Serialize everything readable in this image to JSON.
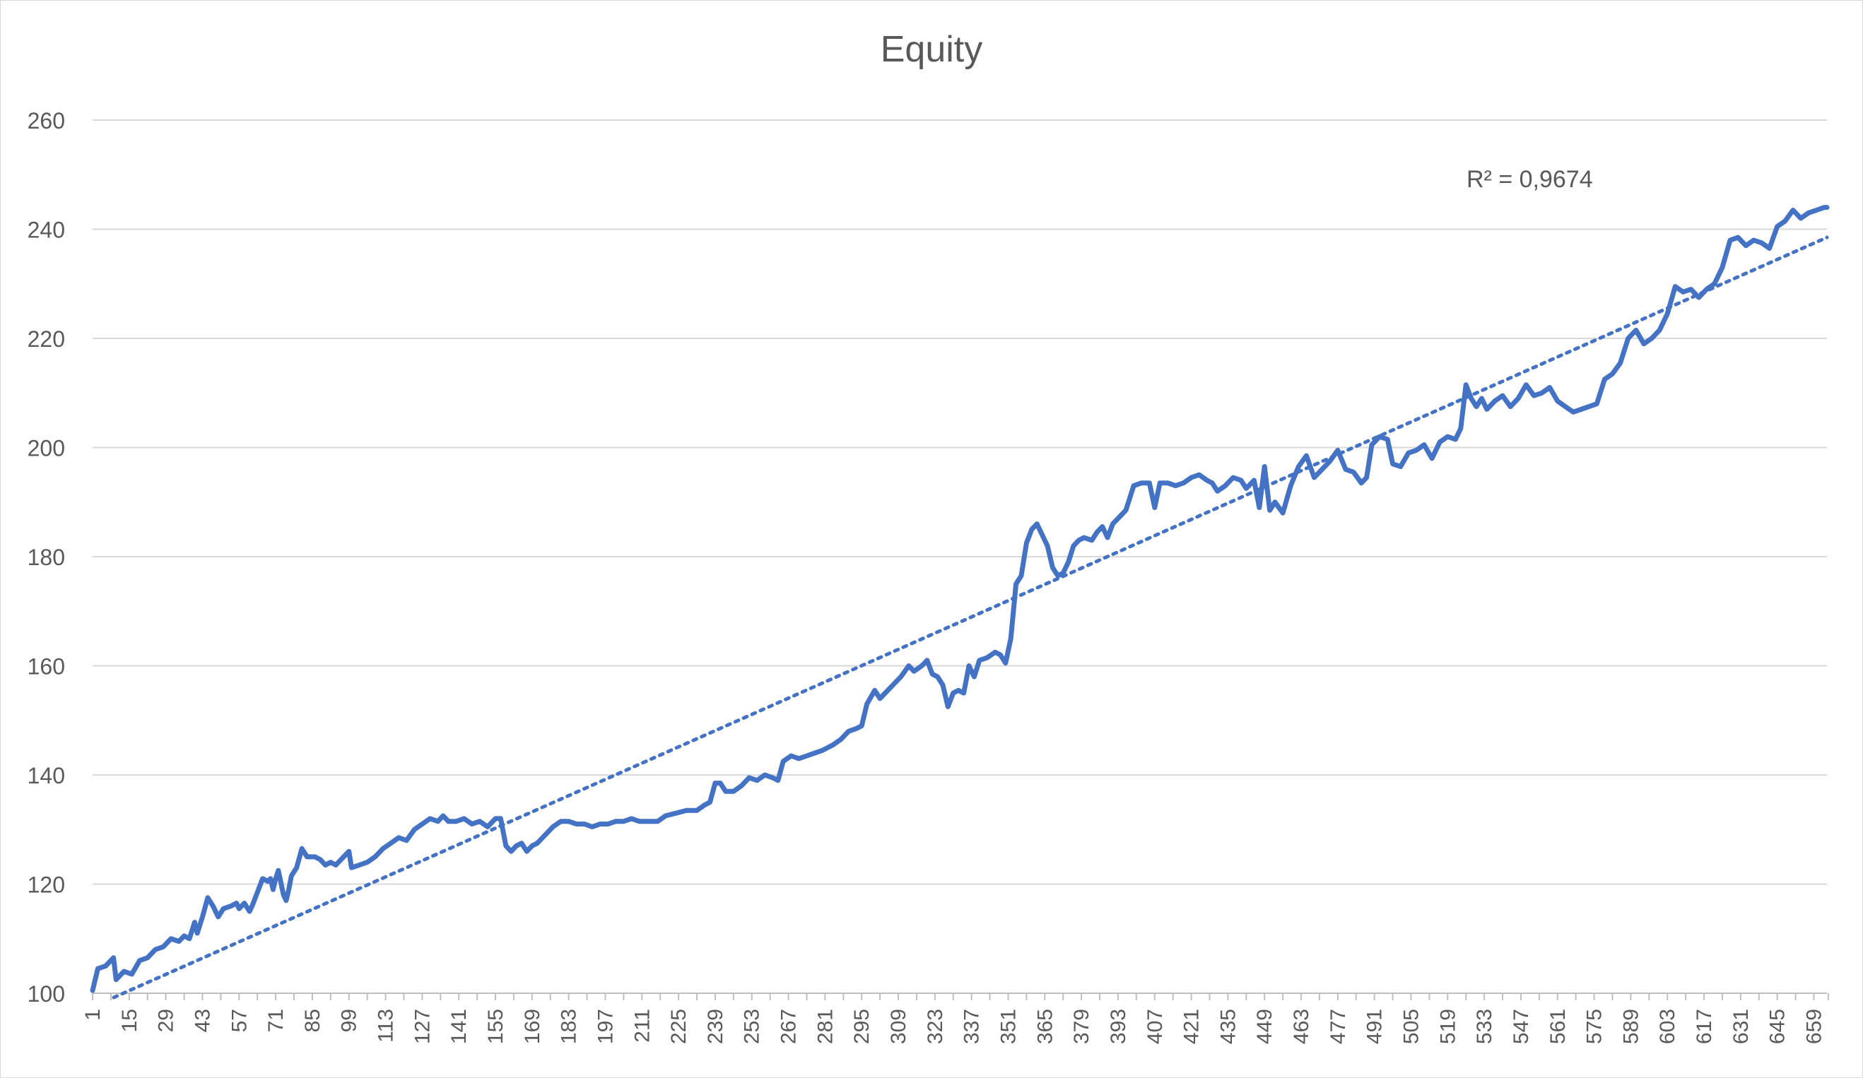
{
  "chart_data": {
    "type": "line",
    "title": "Equity",
    "xlabel": "",
    "ylabel": "",
    "ylim": [
      100,
      260
    ],
    "y_ticks": [
      100,
      120,
      140,
      160,
      180,
      200,
      220,
      240,
      260
    ],
    "x_range": [
      1,
      664
    ],
    "x_tick_labels": [
      1,
      15,
      29,
      43,
      57,
      71,
      85,
      99,
      113,
      127,
      141,
      155,
      169,
      183,
      197,
      211,
      225,
      239,
      253,
      267,
      281,
      295,
      309,
      323,
      337,
      351,
      365,
      379,
      393,
      407,
      421,
      435,
      449,
      463,
      477,
      491,
      505,
      519,
      533,
      547,
      561,
      575,
      589,
      603,
      617,
      631,
      645,
      659
    ],
    "grid": "horizontal",
    "legend": "none",
    "series": [
      {
        "color": "#4472c4",
        "points": [
          [
            1,
            100.5
          ],
          [
            3,
            104.5
          ],
          [
            6,
            105
          ],
          [
            9,
            106.5
          ],
          [
            10,
            102.5
          ],
          [
            13,
            104
          ],
          [
            16,
            103.5
          ],
          [
            19,
            106
          ],
          [
            22,
            106.5
          ],
          [
            25,
            108
          ],
          [
            28,
            108.5
          ],
          [
            31,
            110
          ],
          [
            34,
            109.5
          ],
          [
            36,
            110.5
          ],
          [
            38,
            110
          ],
          [
            40,
            113
          ],
          [
            41,
            111
          ],
          [
            43,
            114
          ],
          [
            45,
            117.5
          ],
          [
            47,
            116
          ],
          [
            49,
            114
          ],
          [
            51,
            115.5
          ],
          [
            54,
            116
          ],
          [
            56,
            116.5
          ],
          [
            57,
            115.5
          ],
          [
            59,
            116.5
          ],
          [
            61,
            115
          ],
          [
            62,
            116
          ],
          [
            64,
            118.5
          ],
          [
            66,
            121
          ],
          [
            68,
            120.5
          ],
          [
            69,
            121
          ],
          [
            70,
            119
          ],
          [
            71,
            121
          ],
          [
            72,
            122.5
          ],
          [
            74,
            118
          ],
          [
            75,
            117
          ],
          [
            76,
            119
          ],
          [
            77,
            121.5
          ],
          [
            79,
            123
          ],
          [
            81,
            126.5
          ],
          [
            83,
            125
          ],
          [
            86,
            125
          ],
          [
            88,
            124.5
          ],
          [
            90,
            123.5
          ],
          [
            92,
            124
          ],
          [
            94,
            123.5
          ],
          [
            96,
            124.5
          ],
          [
            99,
            126
          ],
          [
            100,
            123
          ],
          [
            103,
            123.5
          ],
          [
            106,
            124
          ],
          [
            109,
            125
          ],
          [
            112,
            126.5
          ],
          [
            115,
            127.5
          ],
          [
            118,
            128.5
          ],
          [
            121,
            128
          ],
          [
            124,
            130
          ],
          [
            127,
            131
          ],
          [
            130,
            132
          ],
          [
            133,
            131.5
          ],
          [
            135,
            132.5
          ],
          [
            137,
            131.5
          ],
          [
            140,
            131.5
          ],
          [
            143,
            132
          ],
          [
            146,
            131
          ],
          [
            149,
            131.5
          ],
          [
            152,
            130.5
          ],
          [
            155,
            132
          ],
          [
            157,
            132
          ],
          [
            159,
            127
          ],
          [
            161,
            126
          ],
          [
            163,
            127
          ],
          [
            165,
            127.5
          ],
          [
            167,
            126
          ],
          [
            169,
            127
          ],
          [
            171,
            127.5
          ],
          [
            174,
            129
          ],
          [
            177,
            130.5
          ],
          [
            180,
            131.5
          ],
          [
            183,
            131.5
          ],
          [
            186,
            131
          ],
          [
            189,
            131
          ],
          [
            192,
            130.5
          ],
          [
            195,
            131
          ],
          [
            198,
            131
          ],
          [
            201,
            131.5
          ],
          [
            204,
            131.5
          ],
          [
            207,
            132
          ],
          [
            210,
            131.5
          ],
          [
            214,
            131.5
          ],
          [
            217,
            131.5
          ],
          [
            220,
            132.5
          ],
          [
            224,
            133
          ],
          [
            228,
            133.5
          ],
          [
            232,
            133.5
          ],
          [
            235,
            134.5
          ],
          [
            237,
            135
          ],
          [
            239,
            138.5
          ],
          [
            241,
            138.5
          ],
          [
            243,
            137
          ],
          [
            246,
            137
          ],
          [
            249,
            138
          ],
          [
            252,
            139.5
          ],
          [
            255,
            139
          ],
          [
            258,
            140
          ],
          [
            261,
            139.5
          ],
          [
            263,
            139
          ],
          [
            265,
            142.5
          ],
          [
            268,
            143.5
          ],
          [
            271,
            143
          ],
          [
            274,
            143.5
          ],
          [
            277,
            144
          ],
          [
            280,
            144.5
          ],
          [
            284,
            145.5
          ],
          [
            287,
            146.5
          ],
          [
            290,
            148
          ],
          [
            293,
            148.5
          ],
          [
            295,
            149
          ],
          [
            297,
            153
          ],
          [
            300,
            155.5
          ],
          [
            302,
            154
          ],
          [
            304,
            155
          ],
          [
            307,
            156.5
          ],
          [
            310,
            158
          ],
          [
            313,
            160
          ],
          [
            315,
            159
          ],
          [
            318,
            160
          ],
          [
            320,
            161
          ],
          [
            322,
            158.5
          ],
          [
            324,
            158
          ],
          [
            326,
            156.5
          ],
          [
            328,
            152.5
          ],
          [
            330,
            155
          ],
          [
            332,
            155.5
          ],
          [
            334,
            155
          ],
          [
            336,
            160
          ],
          [
            338,
            158
          ],
          [
            340,
            161
          ],
          [
            343,
            161.5
          ],
          [
            346,
            162.5
          ],
          [
            348,
            162
          ],
          [
            350,
            160.5
          ],
          [
            352,
            165
          ],
          [
            354,
            175
          ],
          [
            356,
            176.5
          ],
          [
            358,
            182.5
          ],
          [
            360,
            185
          ],
          [
            362,
            186
          ],
          [
            364,
            184
          ],
          [
            366,
            182
          ],
          [
            368,
            178
          ],
          [
            370,
            176.5
          ],
          [
            372,
            177
          ],
          [
            374,
            179
          ],
          [
            376,
            182
          ],
          [
            378,
            183
          ],
          [
            380,
            183.5
          ],
          [
            383,
            183
          ],
          [
            385,
            184.5
          ],
          [
            387,
            185.5
          ],
          [
            389,
            183.5
          ],
          [
            391,
            186
          ],
          [
            393,
            187
          ],
          [
            396,
            188.5
          ],
          [
            399,
            193
          ],
          [
            402,
            193.5
          ],
          [
            405,
            193.5
          ],
          [
            407,
            189
          ],
          [
            409,
            193.5
          ],
          [
            412,
            193.5
          ],
          [
            415,
            193
          ],
          [
            418,
            193.5
          ],
          [
            421,
            194.5
          ],
          [
            424,
            195
          ],
          [
            427,
            194
          ],
          [
            429,
            193.5
          ],
          [
            431,
            192
          ],
          [
            434,
            193
          ],
          [
            437,
            194.5
          ],
          [
            440,
            194
          ],
          [
            442,
            192.5
          ],
          [
            445,
            194
          ],
          [
            447,
            189
          ],
          [
            449,
            196.5
          ],
          [
            451,
            188.5
          ],
          [
            453,
            190
          ],
          [
            456,
            188
          ],
          [
            459,
            193
          ],
          [
            462,
            196.5
          ],
          [
            465,
            198.5
          ],
          [
            468,
            194.5
          ],
          [
            471,
            196
          ],
          [
            474,
            197.5
          ],
          [
            477,
            199.5
          ],
          [
            480,
            196
          ],
          [
            483,
            195.5
          ],
          [
            486,
            193.5
          ],
          [
            488,
            194.5
          ],
          [
            490,
            200.5
          ],
          [
            493,
            202
          ],
          [
            496,
            201.5
          ],
          [
            498,
            197
          ],
          [
            501,
            196.5
          ],
          [
            504,
            199
          ],
          [
            507,
            199.5
          ],
          [
            510,
            200.5
          ],
          [
            513,
            198
          ],
          [
            516,
            201
          ],
          [
            519,
            202
          ],
          [
            522,
            201.5
          ],
          [
            524,
            203.5
          ],
          [
            526,
            211.5
          ],
          [
            528,
            209
          ],
          [
            530,
            207.5
          ],
          [
            532,
            209
          ],
          [
            534,
            207
          ],
          [
            537,
            208.5
          ],
          [
            540,
            209.5
          ],
          [
            543,
            207.5
          ],
          [
            546,
            209
          ],
          [
            549,
            211.5
          ],
          [
            552,
            209.5
          ],
          [
            555,
            210
          ],
          [
            558,
            211
          ],
          [
            561,
            208.5
          ],
          [
            564,
            207.5
          ],
          [
            567,
            206.5
          ],
          [
            570,
            207
          ],
          [
            573,
            207.5
          ],
          [
            576,
            208
          ],
          [
            579,
            212.5
          ],
          [
            582,
            213.5
          ],
          [
            585,
            215.5
          ],
          [
            588,
            220
          ],
          [
            591,
            221.5
          ],
          [
            594,
            219
          ],
          [
            597,
            220
          ],
          [
            600,
            221.5
          ],
          [
            603,
            224.5
          ],
          [
            606,
            229.5
          ],
          [
            609,
            228.5
          ],
          [
            612,
            229
          ],
          [
            615,
            227.5
          ],
          [
            618,
            229
          ],
          [
            621,
            230
          ],
          [
            624,
            233
          ],
          [
            627,
            238
          ],
          [
            630,
            238.5
          ],
          [
            633,
            237
          ],
          [
            636,
            238
          ],
          [
            639,
            237.5
          ],
          [
            642,
            236.5
          ],
          [
            645,
            240.5
          ],
          [
            648,
            241.5
          ],
          [
            651,
            243.5
          ],
          [
            654,
            242
          ],
          [
            657,
            243
          ],
          [
            660,
            243.5
          ],
          [
            663,
            244
          ],
          [
            664,
            244
          ]
        ]
      }
    ],
    "trendline": {
      "style": "dotted",
      "color": "#4472c4",
      "start": [
        1,
        97.5
      ],
      "end": [
        664,
        238.5
      ],
      "label": "R² = 0,9674"
    }
  }
}
